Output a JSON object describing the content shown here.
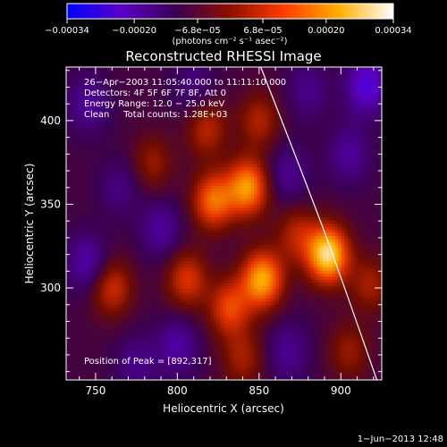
{
  "chart_data": {
    "type": "heatmap",
    "title": "Reconstructed RHESSI Image",
    "xlabel": "Heliocentric X (arcsec)",
    "ylabel": "Heliocentric Y (arcsec)",
    "xlim": [
      732,
      925
    ],
    "ylim": [
      245,
      432
    ],
    "x_ticks": [
      750,
      800,
      850,
      900
    ],
    "y_ticks": [
      300,
      350,
      400
    ],
    "colorbar": {
      "unit_label": "(photons cm⁻² s⁻¹ asec⁻²)",
      "range": [
        -0.00034,
        0.00034
      ],
      "tick_values": [
        -0.00034,
        -0.0002,
        -6.8e-05,
        6.8e-05,
        0.0002,
        0.00034
      ],
      "tick_labels": [
        "−0.00034",
        "−0.00020",
        "−6.8e−05",
        "6.8e−05",
        "0.00020",
        "0.00034"
      ],
      "palette": [
        "#0000ff",
        "#5b00c8",
        "#3a0052",
        "#8e0f00",
        "#ff3c00",
        "#ffb000",
        "#ffffff"
      ]
    },
    "annotations": [
      "26−Apr−2003 11:05:40.000 to 11:11:10.000",
      "Detectors: 4F 5F 6F 7F 8F, Att 0",
      "Energy Range: 12.0 − 25.0 keV",
      "Clean     Total counts: 1.28E+03"
    ],
    "peak_label": "Position of Peak = [892,317]",
    "peak": [
      892,
      317
    ],
    "footer_date": "1−Jun−2013 12:48",
    "sources": [
      {
        "x": 892,
        "y": 320,
        "intensity": 0.00034
      },
      {
        "x": 852,
        "y": 305,
        "intensity": 0.00028
      },
      {
        "x": 843,
        "y": 360,
        "intensity": 0.00026
      },
      {
        "x": 822,
        "y": 352,
        "intensity": 0.00022
      },
      {
        "x": 832,
        "y": 288,
        "intensity": 0.00018
      },
      {
        "x": 760,
        "y": 300,
        "intensity": 0.00015
      },
      {
        "x": 806,
        "y": 305,
        "intensity": 0.00016
      },
      {
        "x": 818,
        "y": 395,
        "intensity": 0.00013
      },
      {
        "x": 850,
        "y": 400,
        "intensity": 0.00012
      },
      {
        "x": 873,
        "y": 332,
        "intensity": 0.00012
      },
      {
        "x": 840,
        "y": 258,
        "intensity": 0.00011
      },
      {
        "x": 785,
        "y": 375,
        "intensity": 0.0001
      },
      {
        "x": 905,
        "y": 262,
        "intensity": 0.0001
      },
      {
        "x": 918,
        "y": 302,
        "intensity": 0.00011
      },
      {
        "x": 745,
        "y": 410,
        "intensity": -0.0001
      },
      {
        "x": 745,
        "y": 315,
        "intensity": -0.00012
      },
      {
        "x": 800,
        "y": 265,
        "intensity": -0.00011
      },
      {
        "x": 790,
        "y": 335,
        "intensity": -0.0001
      },
      {
        "x": 775,
        "y": 255,
        "intensity": -8e-05
      },
      {
        "x": 916,
        "y": 421,
        "intensity": -0.00018
      },
      {
        "x": 905,
        "y": 380,
        "intensity": -0.0001
      },
      {
        "x": 868,
        "y": 368,
        "intensity": -9e-05
      },
      {
        "x": 868,
        "y": 262,
        "intensity": -9e-05
      },
      {
        "x": 765,
        "y": 360,
        "intensity": -7e-05
      },
      {
        "x": 880,
        "y": 418,
        "intensity": -8e-05
      },
      {
        "x": 810,
        "y": 420,
        "intensity": -7e-05
      }
    ]
  }
}
